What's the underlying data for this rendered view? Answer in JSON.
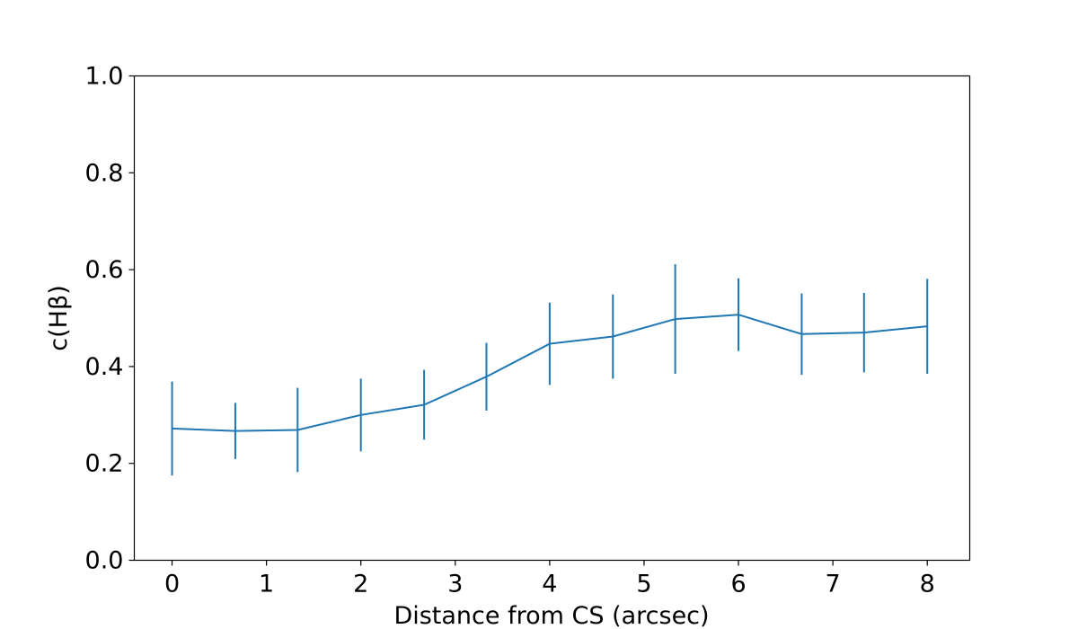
{
  "chart_data": {
    "type": "line",
    "title": "",
    "xlabel": "Distance from CS (arcsec)",
    "ylabel": "c(Hβ)",
    "xlim": [
      -0.4,
      8.45
    ],
    "ylim": [
      0.0,
      1.0
    ],
    "grid": false,
    "x_ticks": [
      "0",
      "1",
      "2",
      "3",
      "4",
      "5",
      "6",
      "7",
      "8"
    ],
    "y_ticks": [
      "0.0",
      "0.2",
      "0.4",
      "0.6",
      "0.8",
      "1.0"
    ],
    "series": [
      {
        "color": "#1f77b4",
        "x": [
          0,
          0.67,
          1.33,
          2.0,
          2.67,
          3.33,
          4.0,
          4.67,
          5.33,
          6.0,
          6.67,
          7.33,
          8.0
        ],
        "y": [
          0.272,
          0.267,
          0.269,
          0.3,
          0.321,
          0.379,
          0.447,
          0.462,
          0.498,
          0.507,
          0.467,
          0.47,
          0.483
        ],
        "yerr": [
          0.097,
          0.058,
          0.087,
          0.075,
          0.072,
          0.07,
          0.085,
          0.087,
          0.113,
          0.075,
          0.084,
          0.082,
          0.098
        ]
      }
    ]
  }
}
